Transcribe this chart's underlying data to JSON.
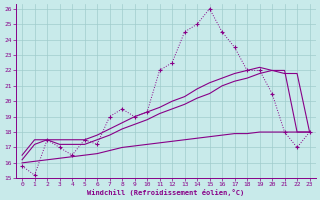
{
  "xlabel": "Windchill (Refroidissement éolien,°C)",
  "bg_color": "#c8eaea",
  "grid_color": "#a0cccc",
  "line_color": "#880088",
  "xlim_min": -0.5,
  "xlim_max": 23.5,
  "ylim_min": 15,
  "ylim_max": 26.3,
  "xticks": [
    0,
    1,
    2,
    3,
    4,
    5,
    6,
    7,
    8,
    9,
    10,
    11,
    12,
    13,
    14,
    15,
    16,
    17,
    18,
    19,
    20,
    21,
    22,
    23
  ],
  "yticks": [
    15,
    16,
    17,
    18,
    19,
    20,
    21,
    22,
    23,
    24,
    25,
    26
  ],
  "line1_x": [
    0,
    1,
    2,
    3,
    4,
    5,
    6,
    7,
    8,
    9,
    10,
    11,
    12,
    13,
    14,
    15,
    16,
    17,
    18,
    19,
    20,
    21,
    22,
    23
  ],
  "line1_y": [
    15.8,
    15.2,
    17.5,
    17.0,
    16.5,
    17.5,
    17.2,
    19.0,
    19.5,
    19.0,
    19.3,
    22.0,
    22.5,
    24.5,
    25.0,
    26.0,
    24.5,
    23.5,
    22.0,
    22.0,
    20.5,
    18.0,
    17.0,
    18.0
  ],
  "line2_x": [
    0,
    1,
    2,
    3,
    4,
    5,
    6,
    7,
    8,
    9,
    10,
    11,
    12,
    13,
    14,
    15,
    16,
    17,
    18,
    19,
    20,
    21,
    22,
    23
  ],
  "line2_y": [
    16.5,
    17.5,
    17.5,
    17.5,
    17.5,
    17.5,
    17.8,
    18.2,
    18.6,
    19.0,
    19.3,
    19.6,
    20.0,
    20.3,
    20.8,
    21.2,
    21.5,
    21.8,
    22.0,
    22.2,
    22.0,
    21.8,
    21.8,
    18.0
  ],
  "line3_x": [
    0,
    1,
    2,
    3,
    4,
    5,
    6,
    7,
    8,
    9,
    10,
    11,
    12,
    13,
    14,
    15,
    16,
    17,
    18,
    19,
    20,
    21,
    22,
    23
  ],
  "line3_y": [
    16.2,
    17.2,
    17.5,
    17.2,
    17.2,
    17.2,
    17.5,
    17.8,
    18.2,
    18.5,
    18.8,
    19.2,
    19.5,
    19.8,
    20.2,
    20.5,
    21.0,
    21.3,
    21.5,
    21.8,
    22.0,
    22.0,
    18.0,
    18.0
  ],
  "line4_x": [
    0,
    1,
    2,
    3,
    4,
    5,
    6,
    7,
    8,
    9,
    10,
    11,
    12,
    13,
    14,
    15,
    16,
    17,
    18,
    19,
    20,
    21,
    22,
    23
  ],
  "line4_y": [
    16.0,
    16.1,
    16.2,
    16.3,
    16.4,
    16.5,
    16.6,
    16.8,
    17.0,
    17.1,
    17.2,
    17.3,
    17.4,
    17.5,
    17.6,
    17.7,
    17.8,
    17.9,
    17.9,
    18.0,
    18.0,
    18.0,
    18.0,
    18.0
  ]
}
